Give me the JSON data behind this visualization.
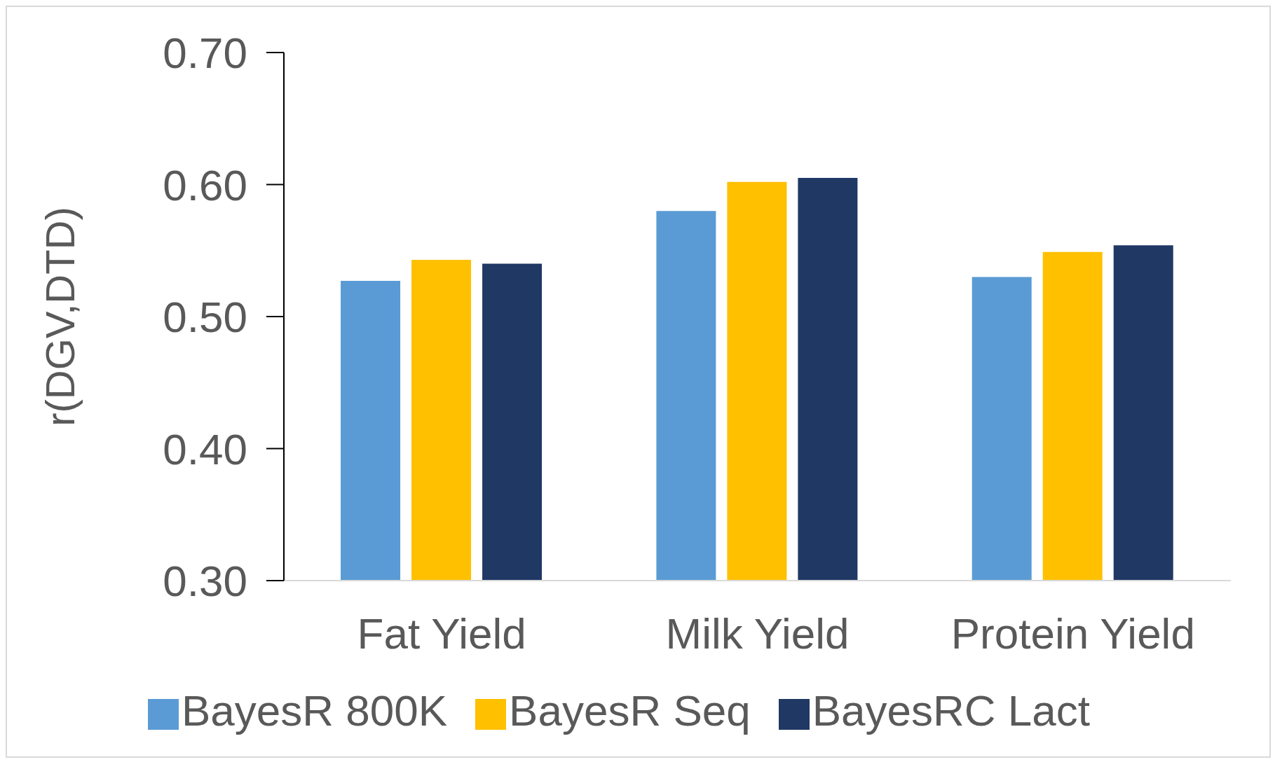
{
  "chart_data": {
    "type": "bar",
    "ylabel": "r(DGV,DTD)",
    "categories": [
      "Fat Yield",
      "Milk Yield",
      "Protein Yield"
    ],
    "series": [
      {
        "name": "BayesR 800K",
        "color": "#5b9bd5",
        "values": [
          0.527,
          0.58,
          0.53
        ]
      },
      {
        "name": "BayesR Seq",
        "color": "#ffc000",
        "values": [
          0.543,
          0.602,
          0.549
        ]
      },
      {
        "name": "BayesRC Lact",
        "color": "#203864",
        "values": [
          0.54,
          0.605,
          0.554
        ]
      }
    ],
    "ylim": [
      0.3,
      0.7
    ],
    "yticks": [
      {
        "value": 0.3,
        "label": "0.30"
      },
      {
        "value": 0.4,
        "label": "0.40"
      },
      {
        "value": 0.5,
        "label": "0.50"
      },
      {
        "value": 0.6,
        "label": "0.60"
      },
      {
        "value": 0.7,
        "label": "0.70"
      }
    ],
    "grid": false,
    "legend": "bottom"
  }
}
